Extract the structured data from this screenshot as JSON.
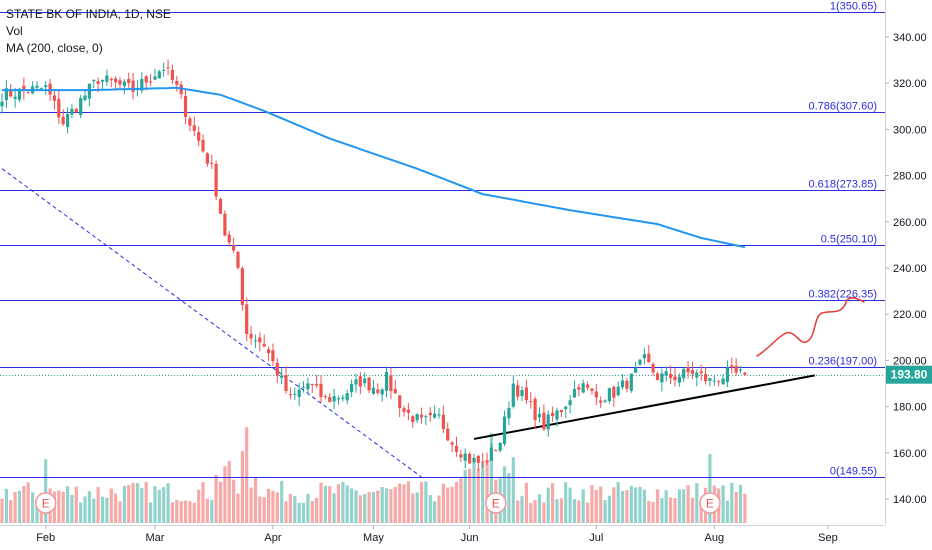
{
  "legend": {
    "symbol": "STATE BK OF INDIA, 1D, NSE",
    "volume": "Vol",
    "ma": "MA (200, close, 0)"
  },
  "price_badge": "193.80",
  "colors": {
    "up": "#26a69a",
    "down": "#ef5350",
    "ma": "#2196f3",
    "fib": "#2a2ee0",
    "trend_dashed": "#2a2ee0",
    "trend_solid": "#000000",
    "sketch": "#e53935"
  },
  "earnings_marker": "E",
  "chart_data": {
    "type": "candlestick",
    "title": "STATE BK OF INDIA, 1D, NSE",
    "ylim": [
      130,
      355
    ],
    "y_ticks": [
      140,
      160,
      180,
      200,
      220,
      240,
      260,
      280,
      300,
      320,
      340
    ],
    "x_ticks": [
      "Feb",
      "Mar",
      "Apr",
      "May",
      "Jun",
      "Jul",
      "Aug",
      "Sep"
    ],
    "fib_levels": [
      {
        "label": "1(350.65)",
        "value": 350.65
      },
      {
        "label": "0.786(307.60)",
        "value": 307.6
      },
      {
        "label": "0.618(273.85)",
        "value": 273.85
      },
      {
        "label": "0.5(250.10)",
        "value": 250.1
      },
      {
        "label": "0.382(226.35)",
        "value": 226.35
      },
      {
        "label": "0.236(197.00)",
        "value": 197.0
      },
      {
        "label": "0(149.55)",
        "value": 149.55
      }
    ],
    "last_price": 193.8,
    "price_anchors": [
      {
        "t": 0,
        "p": 315
      },
      {
        "t": 10,
        "p": 318
      },
      {
        "t": 14,
        "p": 303
      },
      {
        "t": 22,
        "p": 322
      },
      {
        "t": 30,
        "p": 317
      },
      {
        "t": 37,
        "p": 327
      },
      {
        "t": 40,
        "p": 318
      },
      {
        "t": 43,
        "p": 303
      },
      {
        "t": 48,
        "p": 283
      },
      {
        "t": 51,
        "p": 255
      },
      {
        "t": 54,
        "p": 240
      },
      {
        "t": 56,
        "p": 212
      },
      {
        "t": 60,
        "p": 207
      },
      {
        "t": 63,
        "p": 195
      },
      {
        "t": 66,
        "p": 183
      },
      {
        "t": 70,
        "p": 190
      },
      {
        "t": 74,
        "p": 183
      },
      {
        "t": 78,
        "p": 185
      },
      {
        "t": 82,
        "p": 191
      },
      {
        "t": 86,
        "p": 188
      },
      {
        "t": 88,
        "p": 192
      },
      {
        "t": 92,
        "p": 178
      },
      {
        "t": 96,
        "p": 173
      },
      {
        "t": 100,
        "p": 175
      },
      {
        "t": 103,
        "p": 165
      },
      {
        "t": 107,
        "p": 157
      },
      {
        "t": 110,
        "p": 155
      },
      {
        "t": 114,
        "p": 165
      },
      {
        "t": 117,
        "p": 190
      },
      {
        "t": 120,
        "p": 182
      },
      {
        "t": 124,
        "p": 172
      },
      {
        "t": 128,
        "p": 179
      },
      {
        "t": 132,
        "p": 190
      },
      {
        "t": 136,
        "p": 184
      },
      {
        "t": 140,
        "p": 186
      },
      {
        "t": 144,
        "p": 192
      },
      {
        "t": 147,
        "p": 200
      },
      {
        "t": 150,
        "p": 193
      },
      {
        "t": 154,
        "p": 193
      },
      {
        "t": 158,
        "p": 195
      },
      {
        "t": 162,
        "p": 191
      },
      {
        "t": 166,
        "p": 194
      },
      {
        "t": 170,
        "p": 193.8
      }
    ],
    "ma200": [
      {
        "t": 0,
        "p": 317
      },
      {
        "t": 20,
        "p": 317
      },
      {
        "t": 40,
        "p": 318
      },
      {
        "t": 50,
        "p": 315
      },
      {
        "t": 60,
        "p": 308
      },
      {
        "t": 75,
        "p": 296
      },
      {
        "t": 95,
        "p": 283
      },
      {
        "t": 110,
        "p": 272
      },
      {
        "t": 130,
        "p": 265
      },
      {
        "t": 150,
        "p": 259
      },
      {
        "t": 160,
        "p": 253
      },
      {
        "t": 170,
        "p": 249
      }
    ],
    "earnings_at": [
      10,
      113,
      162
    ],
    "dashed_trendline": [
      {
        "t": 0,
        "p": 283
      },
      {
        "t": 96,
        "p": 149.5
      }
    ],
    "rising_trendline": [
      {
        "t": 108,
        "p": 166
      },
      {
        "t": 186,
        "p": 193.5
      }
    ],
    "month_index": {
      "Feb": 10,
      "Mar": 35,
      "Apr": 62,
      "May": 85,
      "Jun": 107,
      "Jul": 136,
      "Aug": 163,
      "Sep": 189
    }
  }
}
